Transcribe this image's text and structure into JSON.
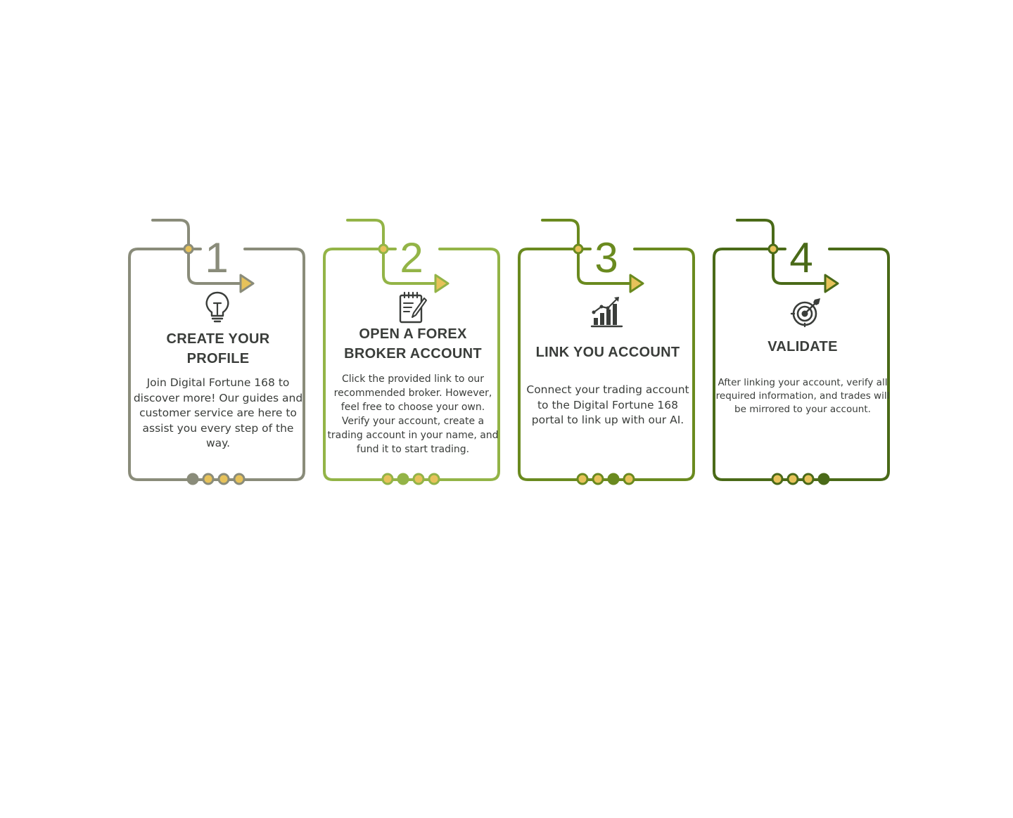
{
  "colors": {
    "text": "#3a3d3a",
    "dot_fill": "#e7c25a",
    "step_colors": [
      "#8a8c7a",
      "#93b447",
      "#6a8a1f",
      "#4a6a18"
    ]
  },
  "steps": [
    {
      "number": "1",
      "icon": "lightbulb-icon",
      "title": "CREATE YOUR PROFILE",
      "description": "Join Digital Fortune 168 to discover more! Our guides and customer service are here to assist you every step of the way.",
      "active_indicator": 1
    },
    {
      "number": "2",
      "icon": "notepad-pencil-icon",
      "title": "OPEN A FOREX BROKER ACCOUNT",
      "description": "Click the provided link to our recommended broker. However, feel free to choose your own. Verify your account, create a trading account in your name, and fund it to start trading.",
      "active_indicator": 2
    },
    {
      "number": "3",
      "icon": "growth-chart-icon",
      "title": "LINK YOU ACCOUNT",
      "description": "Connect your trading account to the Digital Fortune 168 portal to link up with our AI.",
      "active_indicator": 3
    },
    {
      "number": "4",
      "icon": "target-icon",
      "title": "VALIDATE",
      "description": "After linking your account, verify all required information, and trades will be mirrored to your account.",
      "active_indicator": 4
    }
  ]
}
